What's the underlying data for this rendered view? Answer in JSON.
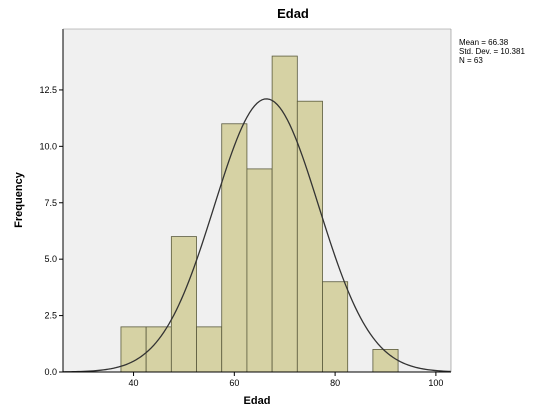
{
  "chart_data": {
    "type": "bar",
    "title": "Edad",
    "xlabel": "Edad",
    "ylabel": "Frequency",
    "bin_width": 5,
    "bins": [
      {
        "start": 37.5,
        "end": 42.5,
        "value": 2
      },
      {
        "start": 42.5,
        "end": 47.5,
        "value": 2
      },
      {
        "start": 47.5,
        "end": 52.5,
        "value": 6
      },
      {
        "start": 52.5,
        "end": 57.5,
        "value": 2
      },
      {
        "start": 57.5,
        "end": 62.5,
        "value": 11
      },
      {
        "start": 62.5,
        "end": 67.5,
        "value": 9
      },
      {
        "start": 67.5,
        "end": 72.5,
        "value": 14
      },
      {
        "start": 72.5,
        "end": 77.5,
        "value": 12
      },
      {
        "start": 77.5,
        "end": 82.5,
        "value": 4
      },
      {
        "start": 82.5,
        "end": 87.5,
        "value": 0
      },
      {
        "start": 87.5,
        "end": 92.5,
        "value": 1
      }
    ],
    "xlim": [
      26,
      103
    ],
    "ylim": [
      0,
      15.2
    ],
    "x_ticks": [
      40,
      60,
      80,
      100
    ],
    "y_ticks": [
      0.0,
      2.5,
      5.0,
      7.5,
      10.0,
      12.5
    ],
    "x_tick_labels": [
      "40",
      "60",
      "80",
      "100"
    ],
    "y_tick_labels": [
      "0.0",
      "2.5",
      "5.0",
      "7.5",
      "10.0",
      "12.5"
    ],
    "normal_curve": {
      "mean": 66.38,
      "std_dev": 10.381,
      "n": 63
    },
    "stats_text": [
      "Mean = 66.38",
      "Std. Dev. = 10.381",
      "N = 63"
    ],
    "colors": {
      "bar_fill": "#d6d2a4",
      "bar_stroke": "#5a5a3c",
      "plot_bg": "#f0f0f0",
      "curve": "#333333"
    }
  }
}
